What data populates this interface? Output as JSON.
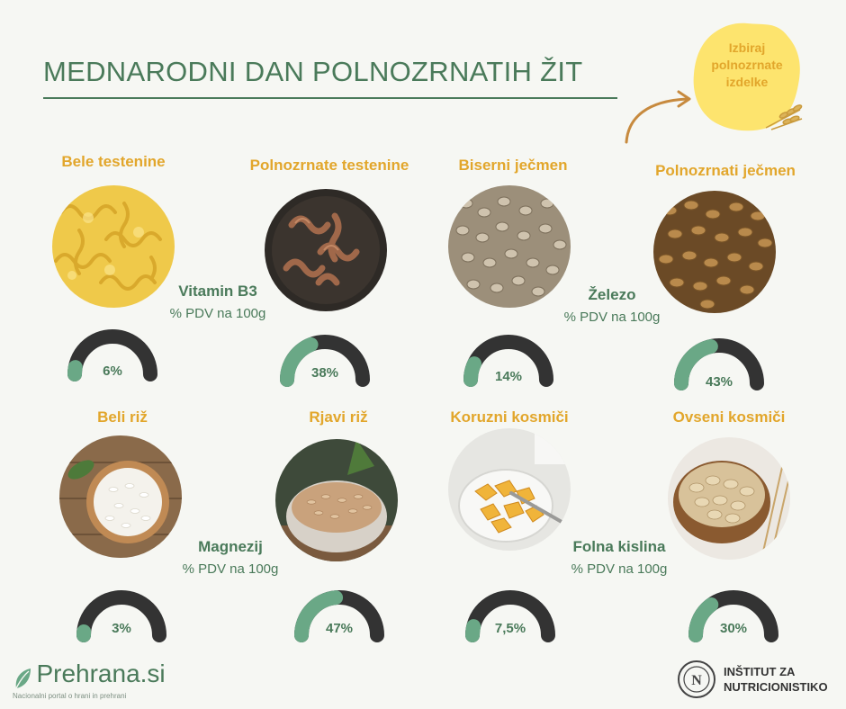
{
  "title": "MEDNARODNI DAN POLNOZRNATIH ŽIT",
  "badge": {
    "text": "Izbiraj\npolnozrnate\nizdelke",
    "color": "#fde46e"
  },
  "colors": {
    "green": "#4a7a5a",
    "accent": "#e2a62b",
    "gauge_track": "#333333",
    "gauge_fill": "#6aa886"
  },
  "foods": [
    {
      "label": "Bele testenine",
      "icon": "white-pasta-image"
    },
    {
      "label": "Polnozrnate testenine",
      "icon": "wholegrain-pasta-image"
    },
    {
      "label": "Biserni ječmen",
      "icon": "pearl-barley-image"
    },
    {
      "label": "Polnozrnati ječmen",
      "icon": "wholegrain-barley-image"
    },
    {
      "label": "Beli riž",
      "icon": "white-rice-image"
    },
    {
      "label": "Rjavi riž",
      "icon": "brown-rice-image"
    },
    {
      "label": "Koruzni kosmiči",
      "icon": "corn-flakes-image"
    },
    {
      "label": "Ovseni kosmiči",
      "icon": "oat-flakes-image"
    }
  ],
  "nutrients": [
    {
      "name": "Vitamin B3",
      "unit": "% PDV na 100g"
    },
    {
      "name": "Železo",
      "unit": "% PDV na 100g"
    },
    {
      "name": "Magnezij",
      "unit": "% PDV na 100g"
    },
    {
      "name": "Folna kislina",
      "unit": "% PDV na 100g"
    }
  ],
  "gauges": [
    {
      "label": "6%",
      "value": 6
    },
    {
      "label": "38%",
      "value": 38
    },
    {
      "label": "14%",
      "value": 14
    },
    {
      "label": "43%",
      "value": 43
    },
    {
      "label": "3%",
      "value": 3
    },
    {
      "label": "47%",
      "value": 47
    },
    {
      "label": "7,5%",
      "value": 7.5
    },
    {
      "label": "30%",
      "value": 30
    }
  ],
  "footer": {
    "brand": "Prehrana.si",
    "brand_sub": "Nacionalni portal o hrani in prehrani",
    "org": "INŠTITUT ZA\nNUTRICIONISTIKO"
  }
}
